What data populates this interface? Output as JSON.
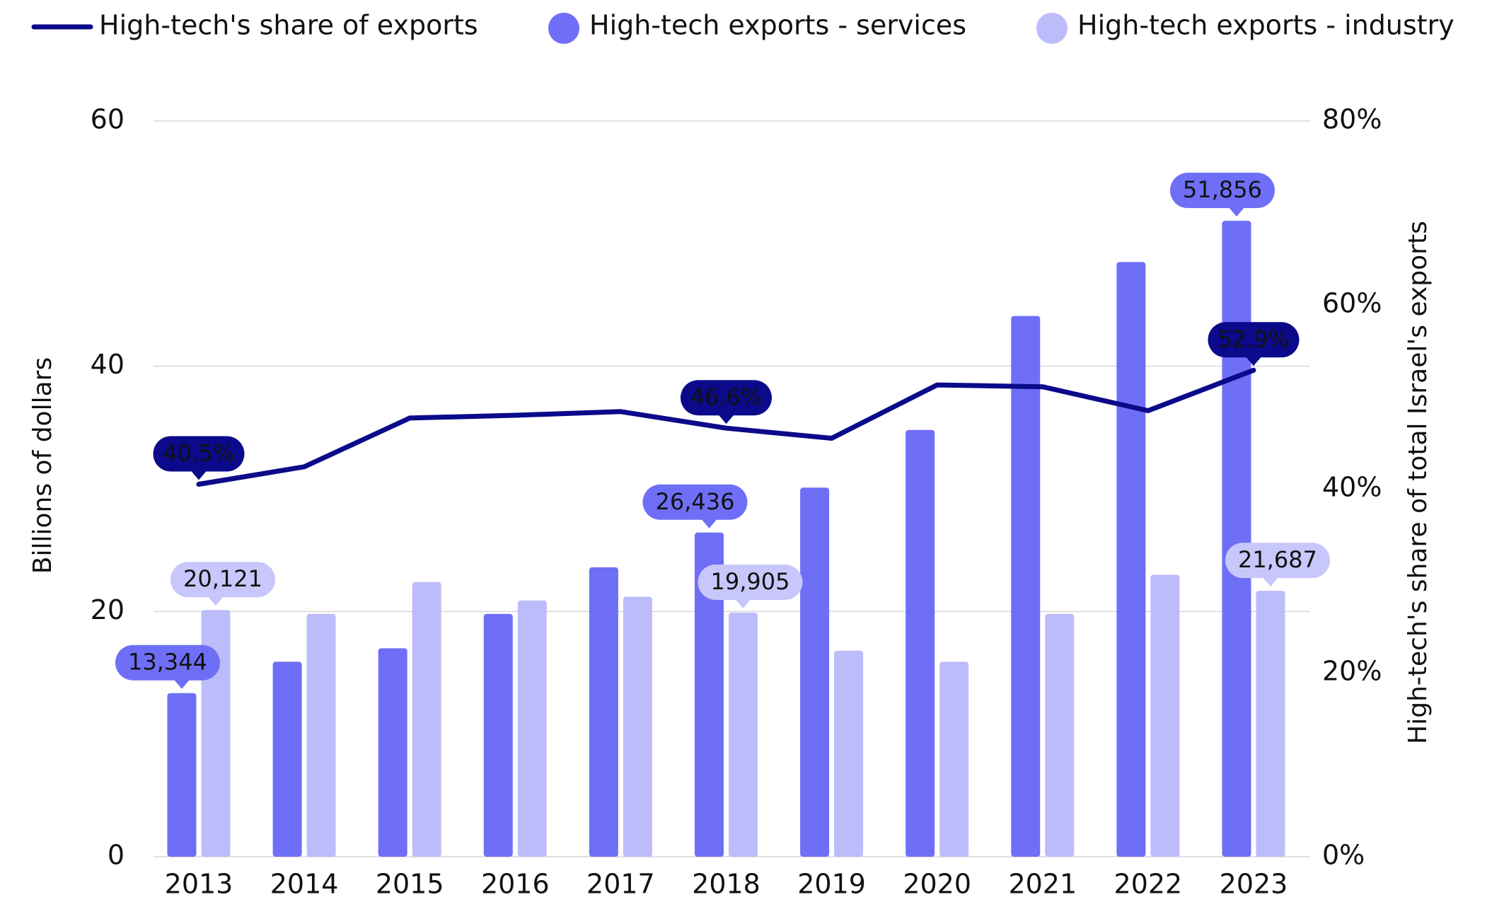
{
  "chart_data": {
    "type": "bar",
    "categories": [
      "2013",
      "2014",
      "2015",
      "2016",
      "2017",
      "2018",
      "2019",
      "2020",
      "2021",
      "2022",
      "2023"
    ],
    "ylabel": "Billions of dollars",
    "y2label": "High-tech's share of total Israel's exports",
    "ylim": [
      0,
      60
    ],
    "yticks": [
      0,
      20,
      40,
      60
    ],
    "y2lim": [
      0,
      80
    ],
    "y2ticks": [
      {
        "value": 0,
        "label": "0%"
      },
      {
        "value": 20,
        "label": "20%"
      },
      {
        "value": 40,
        "label": "40%"
      },
      {
        "value": 60,
        "label": "60%"
      },
      {
        "value": 80,
        "label": "80%"
      }
    ],
    "grid": true,
    "legend": "top",
    "series": [
      {
        "name": "High-tech's share of exports",
        "type": "line",
        "axis": "y2",
        "color": "#0b0a8a",
        "values": [
          40.5,
          42.4,
          47.7,
          48.0,
          48.4,
          46.6,
          45.5,
          51.3,
          51.1,
          48.5,
          52.9
        ],
        "value_labels": [
          "40.5%",
          null,
          null,
          null,
          null,
          "46.6%",
          null,
          null,
          null,
          null,
          "52.9%"
        ]
      },
      {
        "name": "High-tech exports - services",
        "type": "bar",
        "color": "#6e6ef7",
        "values": [
          13.344,
          15.9,
          17.0,
          19.8,
          23.6,
          26.436,
          30.1,
          34.8,
          44.1,
          48.5,
          51.856
        ],
        "value_labels": [
          "13,344",
          null,
          null,
          null,
          null,
          "26,436",
          null,
          null,
          null,
          null,
          "51,856"
        ]
      },
      {
        "name": "High-tech exports - industry",
        "type": "bar",
        "color": "#bdbcfa",
        "values": [
          20.121,
          19.8,
          22.4,
          20.9,
          21.2,
          19.905,
          16.8,
          15.9,
          19.8,
          23.0,
          21.687
        ],
        "value_labels": [
          "20,121",
          null,
          null,
          null,
          null,
          "19,905",
          null,
          null,
          null,
          null,
          "21,687"
        ]
      }
    ]
  }
}
